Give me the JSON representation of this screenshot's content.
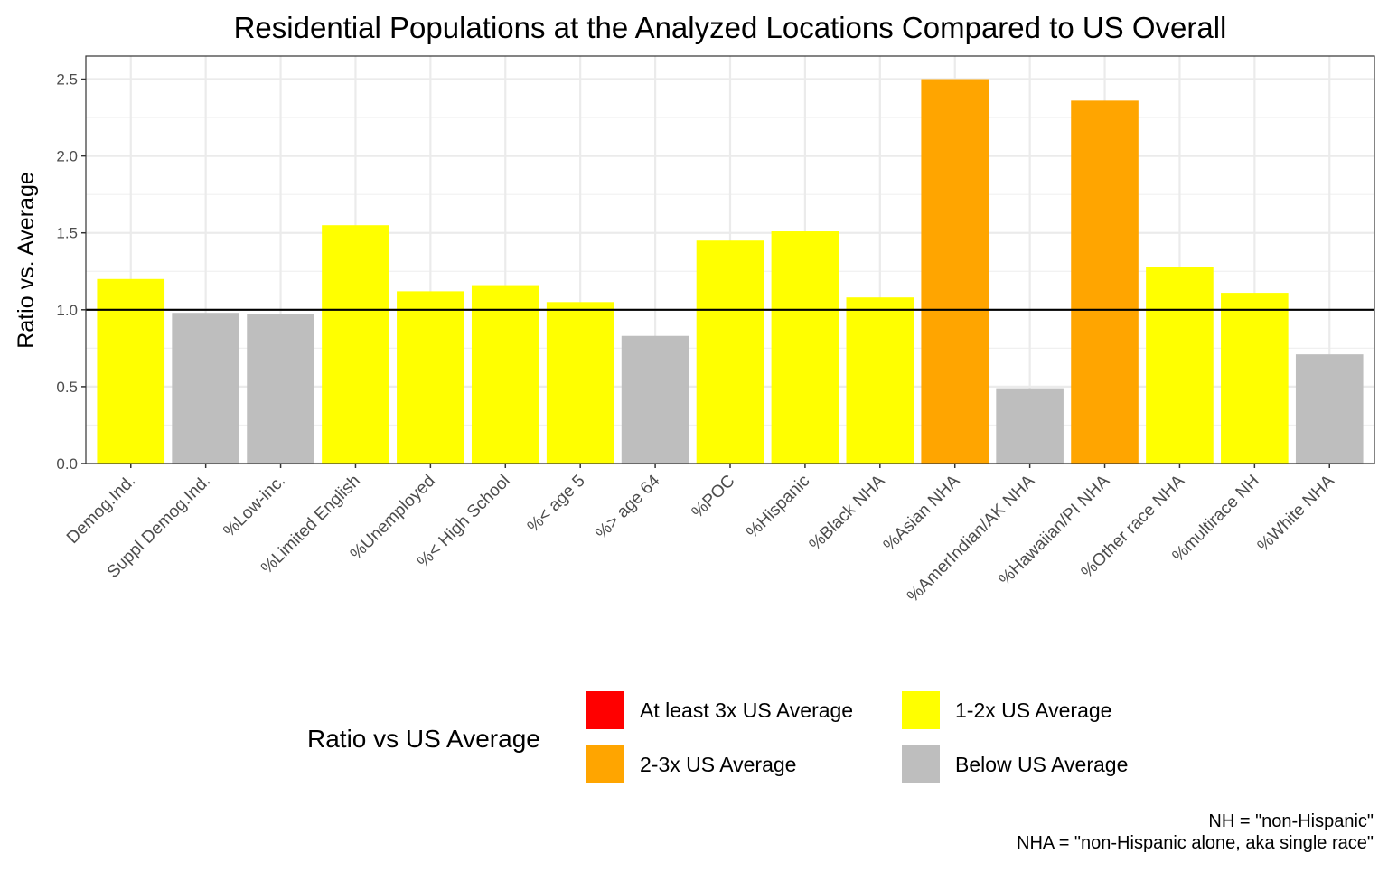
{
  "chart_data": {
    "type": "bar",
    "title": "Residential Populations at the Analyzed Locations Compared to US Overall",
    "xlabel": "",
    "ylabel": "Ratio vs. Average",
    "ylim": [
      0,
      2.65
    ],
    "yticks": [
      "0.0",
      "0.5",
      "1.0",
      "1.5",
      "2.0",
      "2.5"
    ],
    "grid": true,
    "reference_line": 1.0,
    "categories": [
      "Demog.Ind.",
      "Suppl Demog.Ind.",
      "%Low-inc.",
      "%Limited English",
      "%Unemployed",
      "%< High School",
      "%< age 5",
      "%> age 64",
      "%POC",
      "%Hispanic",
      "%Black NHA",
      "%Asian NHA",
      "%AmerIndian/AK NHA",
      "%Hawaiian/PI NHA",
      "%Other race NHA",
      "%multirace NH",
      "%White NHA"
    ],
    "values": [
      1.2,
      0.98,
      0.97,
      1.55,
      1.12,
      1.16,
      1.05,
      0.83,
      1.45,
      1.51,
      1.08,
      2.5,
      0.49,
      2.36,
      1.28,
      1.11,
      0.71
    ],
    "groups": [
      "1-2x US Average",
      "Below US Average",
      "Below US Average",
      "1-2x US Average",
      "1-2x US Average",
      "1-2x US Average",
      "1-2x US Average",
      "Below US Average",
      "1-2x US Average",
      "1-2x US Average",
      "1-2x US Average",
      "2-3x US Average",
      "Below US Average",
      "2-3x US Average",
      "1-2x US Average",
      "1-2x US Average",
      "Below US Average"
    ],
    "legend": {
      "title": "Ratio vs US Average",
      "position": "bottom",
      "items": [
        {
          "label": "At least 3x US Average",
          "color": "#FF0000"
        },
        {
          "label": "2-3x US Average",
          "color": "#FFA500"
        },
        {
          "label": "1-2x US Average",
          "color": "#FFFF00"
        },
        {
          "label": "Below US Average",
          "color": "#BEBEBE"
        }
      ]
    },
    "caption": [
      "NH = \"non-Hispanic\"",
      "NHA = \"non-Hispanic alone, aka single race\""
    ]
  }
}
